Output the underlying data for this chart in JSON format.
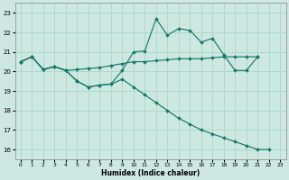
{
  "xlabel": "Humidex (Indice chaleur)",
  "background_color": "#cce8e0",
  "grid_color": "#b0d8cc",
  "line_color": "#1a7a6a",
  "xlim": [
    -0.5,
    23.5
  ],
  "ylim": [
    15.5,
    23.5
  ],
  "yticks": [
    16,
    17,
    18,
    19,
    20,
    21,
    22,
    23
  ],
  "xticks": [
    0,
    1,
    2,
    3,
    4,
    5,
    6,
    7,
    8,
    9,
    10,
    11,
    12,
    13,
    14,
    15,
    16,
    17,
    18,
    19,
    20,
    21,
    22,
    23
  ],
  "lineA_x": [
    0,
    1,
    2,
    3,
    4,
    5,
    6,
    7,
    8,
    9,
    10,
    11,
    12,
    13,
    14,
    15,
    16,
    17,
    18,
    19,
    20,
    21
  ],
  "lineA_y": [
    20.5,
    20.75,
    20.1,
    20.25,
    20.05,
    20.1,
    20.15,
    20.2,
    20.3,
    20.4,
    20.5,
    20.5,
    20.55,
    20.6,
    20.65,
    20.65,
    20.65,
    20.7,
    20.75,
    20.75,
    20.75,
    20.75
  ],
  "lineB_x": [
    0,
    1,
    2,
    3,
    4,
    5,
    6,
    7,
    8,
    9,
    10,
    11,
    12,
    13,
    14,
    15,
    16,
    17,
    18,
    19,
    20,
    21
  ],
  "lineB_y": [
    20.5,
    20.75,
    20.1,
    20.25,
    20.05,
    19.5,
    19.2,
    19.3,
    19.35,
    20.05,
    21.0,
    21.05,
    22.7,
    21.85,
    22.2,
    22.1,
    21.5,
    21.7,
    20.85,
    20.05,
    20.05,
    20.75
  ],
  "lineC_x": [
    0,
    1,
    2,
    3,
    4,
    5,
    6,
    7,
    8,
    9,
    10,
    11,
    12,
    13,
    14,
    15,
    16,
    17,
    18,
    19,
    20,
    21,
    22
  ],
  "lineC_y": [
    20.5,
    20.75,
    20.1,
    20.25,
    20.05,
    19.5,
    19.2,
    19.3,
    19.35,
    19.6,
    19.2,
    18.8,
    18.4,
    18.0,
    17.6,
    17.3,
    17.0,
    16.8,
    16.6,
    16.4,
    16.2,
    16.0,
    16.0
  ]
}
